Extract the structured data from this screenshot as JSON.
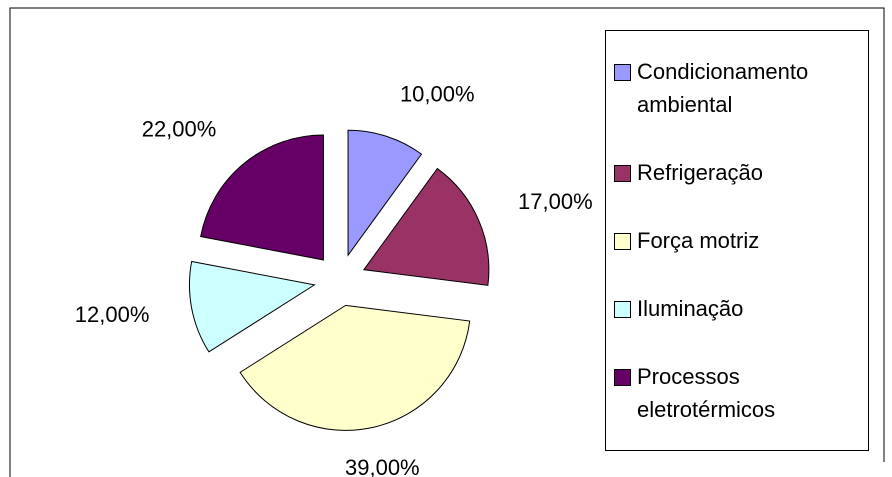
{
  "chart_data": {
    "type": "pie",
    "categories": [
      "Condicionamento ambiental",
      "Refrigeração",
      "Força motriz",
      "Iluminação",
      "Processos eletrotérmicos"
    ],
    "values": [
      10,
      17,
      39,
      12,
      22
    ],
    "value_labels": [
      "10,00%",
      "17,00%",
      "39,00%",
      "12,00%",
      "22,00%"
    ],
    "colors": [
      "#9999ff",
      "#993366",
      "#ffffcc",
      "#ccffff",
      "#660066"
    ],
    "legend": "right"
  }
}
